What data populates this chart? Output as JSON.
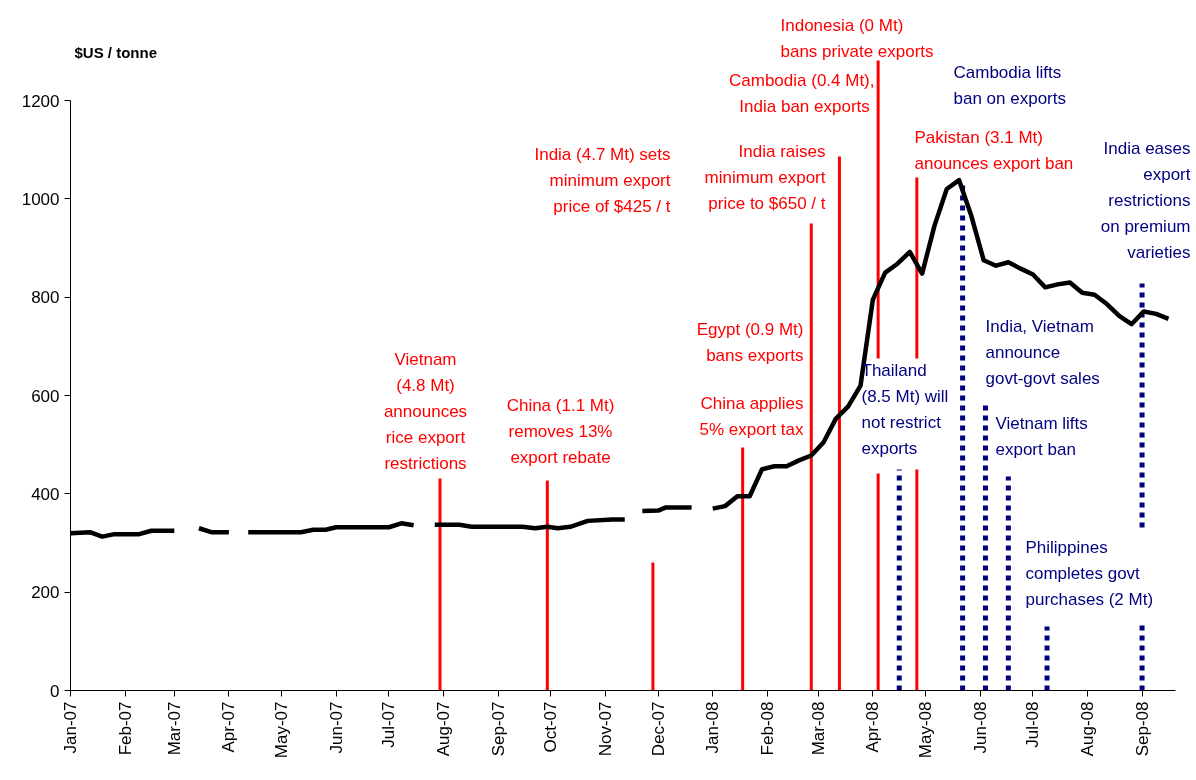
{
  "chart_data": {
    "type": "line",
    "ylabel": "$US / tonne",
    "x": [
      "2007-01-01",
      "2007-01-12",
      "2007-01-19",
      "2007-01-26",
      "2007-02-09",
      "2007-02-16",
      "2007-03-01",
      "2007-03-08",
      "2007-03-15",
      "2007-03-22",
      "2007-04-01",
      "2007-04-05",
      "2007-04-12",
      "2007-05-12",
      "2007-05-19",
      "2007-05-26",
      "2007-06-01",
      "2007-07-01",
      "2007-07-08",
      "2007-07-15",
      "2007-07-20",
      "2007-07-27",
      "2007-08-10",
      "2007-08-17",
      "2007-09-15",
      "2007-09-22",
      "2007-09-29",
      "2007-10-05",
      "2007-10-12",
      "2007-10-22",
      "2007-11-05",
      "2007-11-12",
      "2007-11-18",
      "2007-11-22",
      "2007-12-01",
      "2007-12-05",
      "2007-12-20",
      "2007-12-28",
      "2008-01-01",
      "2008-01-08",
      "2008-01-15",
      "2008-01-22",
      "2008-01-29",
      "2008-02-05",
      "2008-02-12",
      "2008-02-19",
      "2008-02-26",
      "2008-03-04",
      "2008-03-11",
      "2008-03-18",
      "2008-03-25",
      "2008-04-01",
      "2008-04-08",
      "2008-04-15",
      "2008-04-22",
      "2008-04-29",
      "2008-05-06",
      "2008-05-13",
      "2008-05-20",
      "2008-05-27",
      "2008-06-03",
      "2008-06-10",
      "2008-06-17",
      "2008-06-24",
      "2008-07-01",
      "2008-07-08",
      "2008-07-15",
      "2008-07-22",
      "2008-07-29",
      "2008-08-05",
      "2008-08-12",
      "2008-08-19",
      "2008-08-26",
      "2008-09-02",
      "2008-09-09",
      "2008-09-16"
    ],
    "series": [
      {
        "color": "#000000",
        "values": [
          320,
          322,
          313,
          318,
          318,
          325,
          325,
          null,
          330,
          322,
          322,
          null,
          322,
          322,
          327,
          327,
          332,
          332,
          340,
          336,
          null,
          337,
          337,
          333,
          333,
          330,
          333,
          330,
          333,
          345,
          348,
          348,
          null,
          365,
          366,
          372,
          372,
          null,
          370,
          375,
          395,
          395,
          450,
          456,
          456,
          468,
          478,
          505,
          553,
          578,
          620,
          795,
          850,
          868,
          892,
          848,
          945,
          1020,
          1038,
          965,
          875,
          864,
          871,
          858,
          846,
          820,
          826,
          830,
          809,
          805,
          786,
          762,
          745,
          771,
          766,
          756
        ]
      }
    ],
    "xlim": [
      "2007-01-01",
      "2008-09-20"
    ],
    "xticks": [
      {
        "value": "2007-01",
        "label": "Jan-07"
      },
      {
        "value": "2007-02",
        "label": "Feb-07"
      },
      {
        "value": "2007-03",
        "label": "Mar-07"
      },
      {
        "value": "2007-04",
        "label": "Apr-07"
      },
      {
        "value": "2007-05",
        "label": "May-07"
      },
      {
        "value": "2007-06",
        "label": "Jun-07"
      },
      {
        "value": "2007-07",
        "label": "Jul-07"
      },
      {
        "value": "2007-08",
        "label": "Aug-07"
      },
      {
        "value": "2007-09",
        "label": "Sep-07"
      },
      {
        "value": "2007-10",
        "label": "Oct-07"
      },
      {
        "value": "2007-11",
        "label": "Nov-07"
      },
      {
        "value": "2007-12",
        "label": "Dec-07"
      },
      {
        "value": "2008-01",
        "label": "Jan-08"
      },
      {
        "value": "2008-02",
        "label": "Feb-08"
      },
      {
        "value": "2008-03",
        "label": "Mar-08"
      },
      {
        "value": "2008-04",
        "label": "Apr-08"
      },
      {
        "value": "2008-05",
        "label": "May-08"
      },
      {
        "value": "2008-06",
        "label": "Jun-08"
      },
      {
        "value": "2008-07",
        "label": "Jul-08"
      },
      {
        "value": "2008-08",
        "label": "Aug-08"
      },
      {
        "value": "2008-09",
        "label": "Sep-08"
      }
    ],
    "ylim": [
      0,
      1200
    ],
    "yticks": [
      0,
      200,
      400,
      600,
      800,
      1000,
      1200
    ],
    "grid": false,
    "marker": "none",
    "line_style": "solid",
    "ref_lines": [
      {
        "axis": "x",
        "value": "2007-07-30",
        "label": "Vietnam\n(4.8 Mt)\nannounces\nrice export\nrestrictions",
        "color": "#ff0000",
        "line_style": "solid"
      },
      {
        "axis": "x",
        "value": "2007-09-29",
        "label": "China (1.1 Mt)\nremoves 13%\nexport rebate",
        "color": "#ff0000",
        "line_style": "solid"
      },
      {
        "axis": "x",
        "value": "2007-11-28",
        "label": "India (4.7 Mt) sets\nminimum export\nprice of $425 / t",
        "color": "#ff0000",
        "line_style": "solid"
      },
      {
        "axis": "x",
        "value": "2008-01-18",
        "label": "China applies\n5% export tax",
        "color": "#ff0000",
        "line_style": "solid"
      },
      {
        "axis": "x",
        "value": "2008-02-26",
        "label": "India raises\nminimum export\nprice to $650 / t",
        "color": "#ff0000",
        "line_style": "solid"
      },
      {
        "axis": "x",
        "value": "2008-03-13",
        "label": "Cambodia (0.4 Mt),\nIndia  ban exports",
        "color": "#ff0000",
        "line_style": "solid"
      },
      {
        "axis": "x",
        "value": "2008-04-04",
        "label": "Indonesia (0 Mt)\nbans private exports",
        "color": "#ff0000",
        "line_style": "solid"
      },
      {
        "axis": "x",
        "value": "2008-04-26",
        "label": "Pakistan (3.1 Mt)\nanounces export ban",
        "color": "#ff0000",
        "line_style": "solid"
      },
      {
        "axis": "x",
        "value": "2008-04-16",
        "label": "Thailand\n(8.5 Mt) will\nnot restrict\nexports",
        "color": "#000080",
        "line_style": "dotted"
      },
      {
        "axis": "x",
        "value": "2008-05-22",
        "label": "Cambodia lifts\nban on exports",
        "color": "#000080",
        "line_style": "dotted"
      },
      {
        "axis": "x",
        "value": "2008-06-04",
        "label": "India, Vietnam\nannounce\ngovt-govt sales",
        "color": "#000080",
        "line_style": "dotted"
      },
      {
        "axis": "x",
        "value": "2008-06-17",
        "label": "Vietnam lifts\nexport ban",
        "color": "#000080",
        "line_style": "dotted"
      },
      {
        "axis": "x",
        "value": "2008-07-09",
        "label": "Philippines\ncompletes govt\npurchases (2 Mt)",
        "color": "#000080",
        "line_style": "dotted"
      },
      {
        "axis": "x",
        "value": "2008-09-01",
        "label": "India eases\nexport\nrestrictions\non premium\nvarieties",
        "color": "#000080",
        "line_style": "dotted"
      }
    ],
    "annotations": [
      "Egypt (0.9 Mt)\nbans exports"
    ]
  }
}
